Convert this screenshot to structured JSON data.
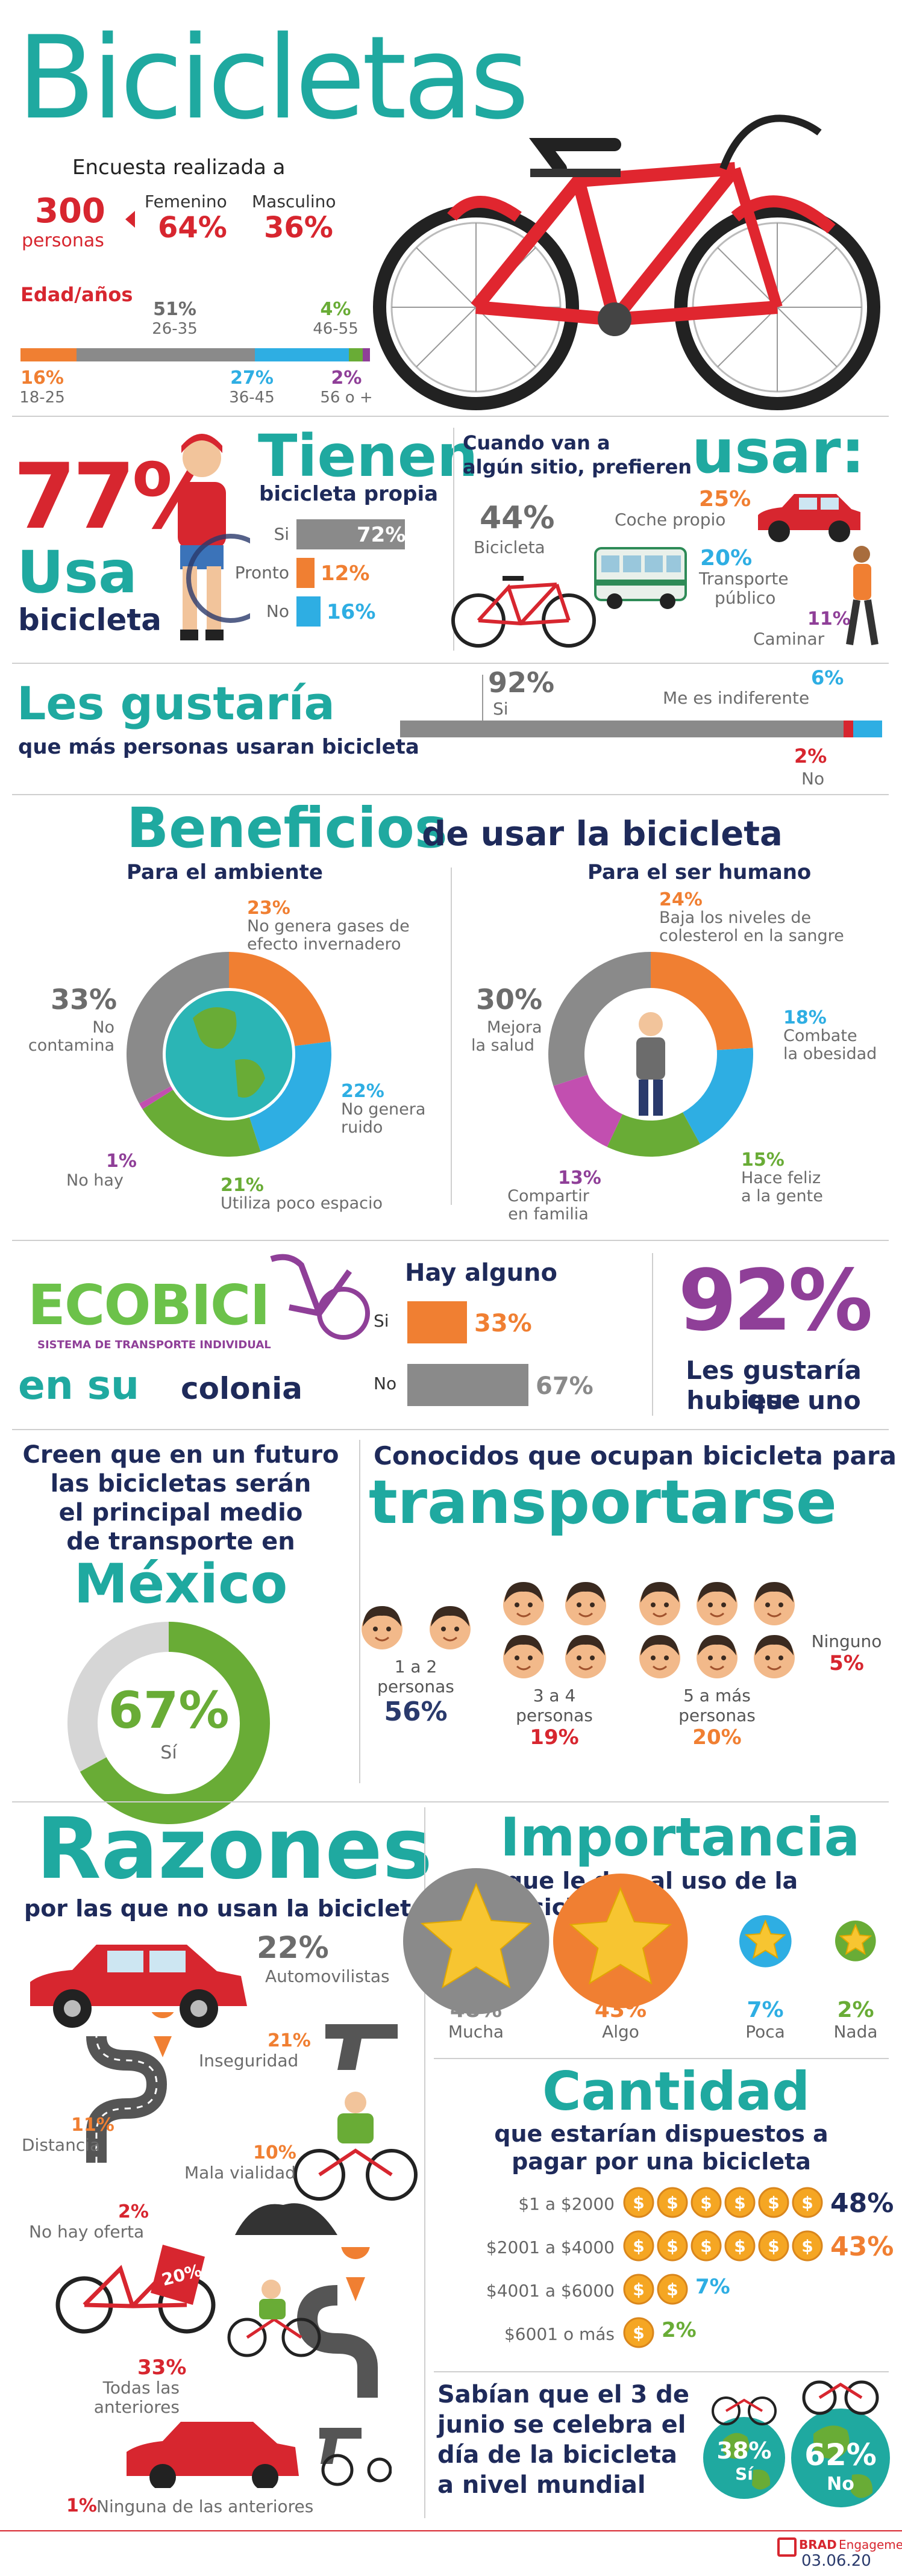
{
  "header": {
    "title": "Bicicletas",
    "survey": "Encuesta realizada a",
    "people_count": "300",
    "people_label": "personas",
    "female_label": "Femenino",
    "female_pct": "64%",
    "male_label": "Masculino",
    "male_pct": "36%"
  },
  "age": {
    "title": "Edad/años",
    "groups": [
      {
        "label": "18-25",
        "pct": "16%",
        "share": 0.16,
        "color": "#f07f32"
      },
      {
        "label": "26-35",
        "pct": "51%",
        "share": 0.51,
        "color": "#8a8a8a"
      },
      {
        "label": "36-45",
        "pct": "27%",
        "share": 0.27,
        "color": "#2eaee3"
      },
      {
        "label": "46-55",
        "pct": "4%",
        "share": 0.04,
        "color": "#69ac36"
      },
      {
        "label": "56 o +",
        "pct": "2%",
        "share": 0.02,
        "color": "#8f3f98"
      }
    ]
  },
  "usage": {
    "pct": "77%",
    "word1": "Usa",
    "word2": "bicicleta"
  },
  "own": {
    "title1": "Tienen",
    "title2": "bicicleta propia",
    "rows": [
      {
        "label": "Si",
        "pct": "72%",
        "share": 0.72,
        "color": "#8a8a8a"
      },
      {
        "label": "Pronto",
        "pct": "12%",
        "share": 0.12,
        "color": "#f07f32"
      },
      {
        "label": "No",
        "pct": "16%",
        "share": 0.16,
        "color": "#2eaee3"
      }
    ]
  },
  "prefer": {
    "line1": "Cuando van a",
    "line2": "algún sitio,",
    "line3": "prefieren",
    "big": "usar:",
    "bike_pct": "44%",
    "bike_label": "Bicicleta",
    "car_pct": "25%",
    "car_label": "Coche propio",
    "bus_pct": "20%",
    "bus_label1": "Transporte",
    "bus_label2": "público",
    "walk_pct": "11%",
    "walk_label": "Caminar"
  },
  "wish": {
    "title": "Les gustaría",
    "subtitle": "que más personas usaran bicicleta",
    "yes_pct": "92%",
    "yes_label": "Si",
    "yes_share": 0.92,
    "indif_pct": "6%",
    "indif_label": "Me es indiferente",
    "indif_share": 0.06,
    "no_pct": "2%",
    "no_label": "No",
    "no_share": 0.02
  },
  "benefits": {
    "title1": "Beneficios",
    "title2": "de usar la bicicleta",
    "env_title": "Para el ambiente",
    "human_title": "Para el ser humano",
    "env": [
      {
        "pct": "23%",
        "label1": "No genera gases de",
        "label2": "efecto invernadero",
        "value": 23,
        "color": "#f07f32"
      },
      {
        "pct": "22%",
        "label1": "No genera",
        "label2": "ruido",
        "value": 22,
        "color": "#2eaee3"
      },
      {
        "pct": "21%",
        "label1": "Utiliza poco espacio",
        "label2": "",
        "value": 21,
        "color": "#69ac36"
      },
      {
        "pct": "1%",
        "label1": "No hay",
        "label2": "",
        "value": 1,
        "color": "#c24fb0"
      },
      {
        "pct": "33%",
        "label1": "No",
        "label2": "contamina",
        "value": 33,
        "color": "#8a8a8a"
      }
    ],
    "human": [
      {
        "pct": "24%",
        "label1": "Baja los niveles de",
        "label2": "colesterol en la sangre",
        "value": 24,
        "color": "#f07f32"
      },
      {
        "pct": "18%",
        "label1": "Combate",
        "label2": "la obesidad",
        "value": 18,
        "color": "#2eaee3"
      },
      {
        "pct": "15%",
        "label1": "Hace feliz",
        "label2": "a la gente",
        "value": 15,
        "color": "#69ac36"
      },
      {
        "pct": "13%",
        "label1": "Compartir",
        "label2": "en familia",
        "value": 13,
        "color": "#c24fb0"
      },
      {
        "pct": "30%",
        "label1": "Mejora",
        "label2": "la salud",
        "value": 30,
        "color": "#8a8a8a"
      }
    ]
  },
  "ecobici": {
    "logo": "ECOBICI",
    "logo_sub": "SISTEMA DE TRANSPORTE INDIVIDUAL",
    "caption1": "en su",
    "caption2": "colonia",
    "question": "Hay alguno",
    "rows": [
      {
        "label": "Si",
        "pct": "33%",
        "share": 0.33,
        "color": "#f07f32"
      },
      {
        "label": "No",
        "pct": "67%",
        "share": 0.67,
        "color": "#8a8a8a"
      }
    ],
    "want_pct": "92%",
    "want_label1": "Les gustaría que",
    "want_label2": "hubiese uno"
  },
  "future": {
    "line1": "Creen que en un futuro",
    "line2": "las bicicletas serán",
    "line3": "el principal medio",
    "line4": "de transporte en",
    "country": "México",
    "pct": "67%",
    "pct_value": 0.67,
    "pct_label": "Sí"
  },
  "known": {
    "title1": "Conocidos que ocupan bicicleta para",
    "title2": "transportarse",
    "groups": [
      {
        "label1": "1 a 2",
        "label2": "personas",
        "pct": "56%",
        "faces": 2
      },
      {
        "label1": "3 a 4",
        "label2": "personas",
        "pct": "19%",
        "faces": 4
      },
      {
        "label1": "5 a más",
        "label2": "personas",
        "pct": "20%",
        "faces": 6
      },
      {
        "label1": "Ninguno",
        "label2": "",
        "pct": "5%",
        "faces": 0
      }
    ]
  },
  "reasons": {
    "title": "Razones",
    "subtitle": "por las que no usan la bicicleta",
    "items": [
      {
        "pct": "22%",
        "label": "Automovilistas"
      },
      {
        "pct": "21%",
        "label": "Inseguridad"
      },
      {
        "pct": "11%",
        "label": "Distancia"
      },
      {
        "pct": "10%",
        "label": "Mala vialidad"
      },
      {
        "pct": "2%",
        "label": "No hay oferta"
      },
      {
        "pct": "33%",
        "label": "Todas las anteriores"
      },
      {
        "pct": "1%",
        "label": "Ninguna  de las anteriores"
      }
    ],
    "tag": "20%"
  },
  "importance": {
    "title": "Importancia",
    "subtitle": "que le dan al uso de la bicicleta",
    "items": [
      {
        "pct": "48%",
        "label": "Mucha",
        "value": 48
      },
      {
        "pct": "43%",
        "label": "Algo",
        "value": 43
      },
      {
        "pct": "7%",
        "label": "Poca",
        "value": 7
      },
      {
        "pct": "2%",
        "label": "Nada",
        "value": 2
      }
    ]
  },
  "amount": {
    "title": "Cantidad",
    "subtitle1": "que estarían dispuestos a",
    "subtitle2": "pagar por una bicicleta",
    "rows": [
      {
        "label": "$1 a $2000",
        "pct": "48%",
        "coins": 6,
        "color": "#1e2a5a"
      },
      {
        "label": "$2001 a $4000",
        "pct": "43%",
        "coins": 6,
        "color": "#f07f32"
      },
      {
        "label": "$4001 a $6000",
        "pct": "7%",
        "coins": 2,
        "color": "#2eaee3"
      },
      {
        "label": "$6001 o más",
        "pct": "2%",
        "coins": 1,
        "color": "#69ac36"
      }
    ]
  },
  "bikeday": {
    "line1": "Sabían que el 3 de",
    "line2": "junio se celebra el",
    "line3": "día de la bicicleta",
    "line4": "a nivel mundial",
    "yes_pct": "38%",
    "yes_label": "Sí",
    "no_pct": "62%",
    "no_label": "No"
  },
  "footer": {
    "brand": "BRAD",
    "brand2": "Engagement",
    "date": "03.06.20"
  }
}
